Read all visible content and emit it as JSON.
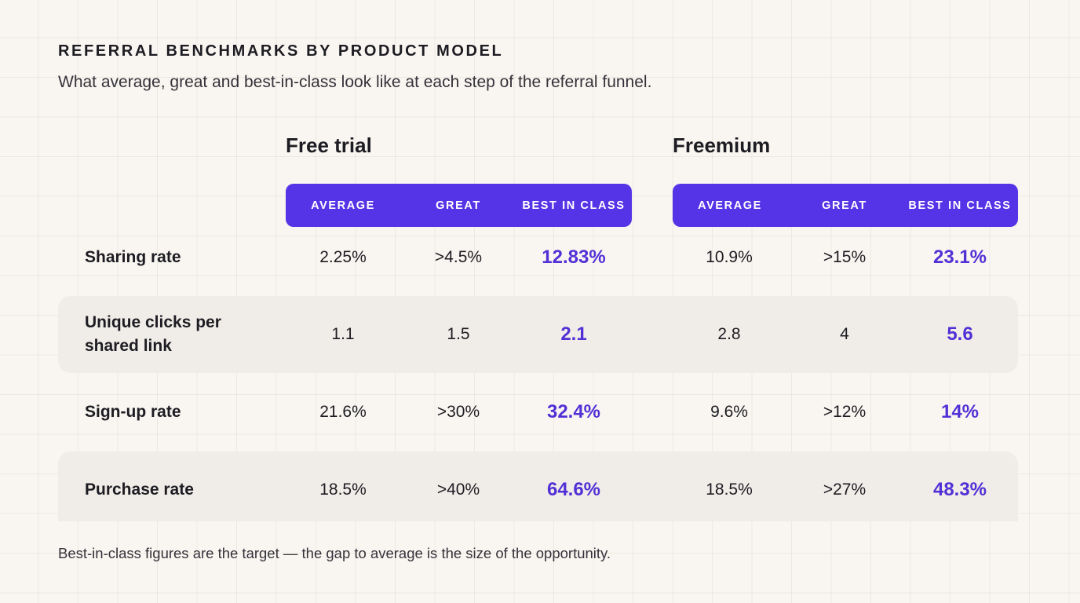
{
  "header": {
    "eyebrow": "REFERRAL BENCHMARKS BY PRODUCT MODEL",
    "subtitle": "What average, great and best-in-class look like at each step of the referral funnel."
  },
  "groups": [
    {
      "title": "Free trial",
      "columns": [
        "AVERAGE",
        "GREAT",
        "BEST IN CLASS"
      ]
    },
    {
      "title": "Freemium",
      "columns": [
        "AVERAGE",
        "GREAT",
        "BEST IN CLASS"
      ]
    }
  ],
  "rows": [
    {
      "label": "Sharing rate",
      "free_trial": [
        "2.25%",
        ">4.5%",
        "12.83%"
      ],
      "freemium": [
        "10.9%",
        ">15%",
        "23.1%"
      ]
    },
    {
      "label": "Unique clicks per shared link",
      "free_trial": [
        "1.1",
        "1.5",
        "2.1"
      ],
      "freemium": [
        "2.8",
        "4",
        "5.6"
      ]
    },
    {
      "label": "Sign-up rate",
      "free_trial": [
        "21.6%",
        ">30%",
        "32.4%"
      ],
      "freemium": [
        "9.6%",
        ">12%",
        "14%"
      ]
    },
    {
      "label": "Purchase rate",
      "free_trial": [
        "18.5%",
        ">40%",
        "64.6%"
      ],
      "freemium": [
        "18.5%",
        ">27%",
        "48.3%"
      ]
    }
  ],
  "footnote": "Best-in-class figures are the target — the gap to average is the size of the opportunity.",
  "colors": {
    "accent": "#5533e6",
    "best_value": "#5230d6",
    "background": "#f9f6f1",
    "row_shade": "#f0ede8"
  }
}
